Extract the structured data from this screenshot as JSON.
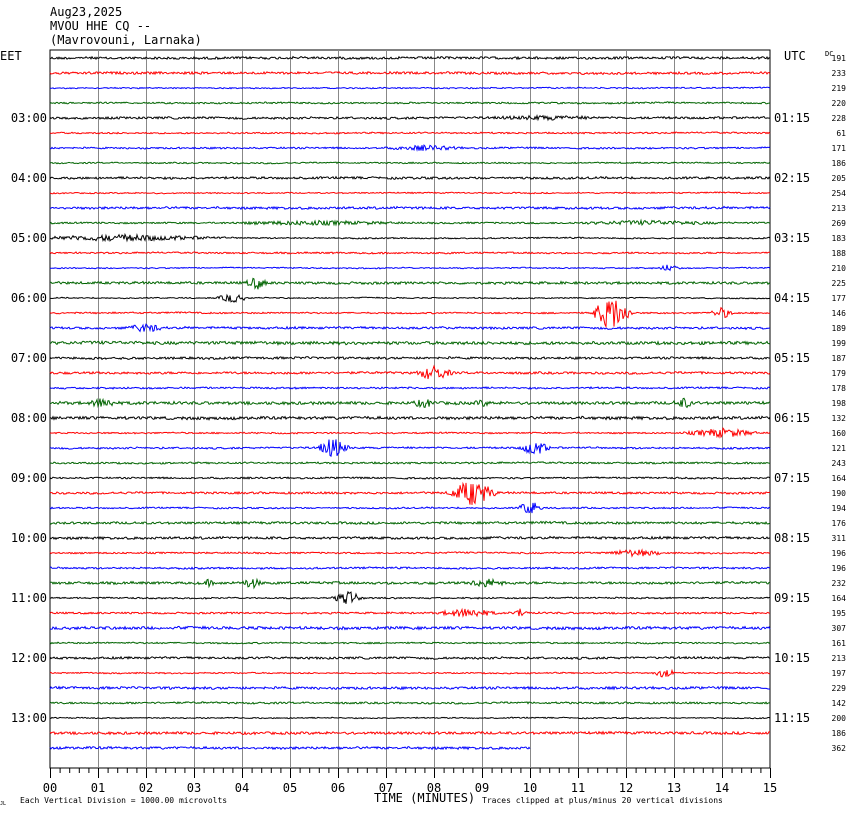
{
  "header": {
    "date": "Aug23,2025",
    "station": "MVOU HHE CQ --",
    "location": "(Mavrovouni, Larnaka)"
  },
  "labels": {
    "left_tz": "EET",
    "right_tz": "UTC",
    "dc": "DC",
    "xlabel": "TIME (MINUTES)",
    "scale_note": "Each Vertical Division = 1000.00 microvolts",
    "clip_note": "Traces clipped at plus/minus 20 vertical divisions",
    "corner_mark": "JL"
  },
  "chart_data": {
    "type": "line",
    "title": "MVOU HHE CQ --",
    "xlabel": "TIME (MINUTES)",
    "xlim": [
      0,
      15
    ],
    "x_ticks": [
      "00",
      "01",
      "02",
      "03",
      "04",
      "05",
      "06",
      "07",
      "08",
      "09",
      "10",
      "11",
      "12",
      "13",
      "14",
      "15"
    ],
    "row_minutes": 15,
    "left_hour_labels": [
      "03:00",
      "04:00",
      "05:00",
      "06:00",
      "07:00",
      "08:00",
      "09:00",
      "10:00",
      "11:00",
      "12:00",
      "13:00"
    ],
    "right_hour_labels": [
      "01:15",
      "02:15",
      "03:15",
      "04:15",
      "05:15",
      "06:15",
      "07:15",
      "08:15",
      "09:15",
      "10:15",
      "11:15"
    ],
    "trace_colors": [
      "#000000",
      "#ff0000",
      "#0000ff",
      "#006400"
    ],
    "dc_offsets": [
      191,
      233,
      219,
      220,
      228,
      61,
      171,
      186,
      205,
      254,
      213,
      269,
      183,
      188,
      210,
      225,
      177,
      146,
      189,
      199,
      187,
      179,
      178,
      198,
      132,
      160,
      121,
      243,
      164,
      190,
      194,
      176,
      311,
      196,
      196,
      232,
      164,
      195,
      307,
      161,
      213,
      197,
      229,
      142,
      200,
      186,
      362
    ],
    "last_trace_end_minute": 10.0,
    "events": [
      {
        "row": 4,
        "minute": 10.3,
        "amp": 2.5,
        "len": 2.0
      },
      {
        "row": 6,
        "minute": 7.8,
        "amp": 3,
        "len": 1.2
      },
      {
        "row": 11,
        "minute": 5.5,
        "amp": 2.5,
        "len": 3.0
      },
      {
        "row": 11,
        "minute": 12.5,
        "amp": 2.5,
        "len": 2.5
      },
      {
        "row": 12,
        "minute": 1.5,
        "amp": 3.5,
        "len": 2.8
      },
      {
        "row": 14,
        "minute": 12.9,
        "amp": 4,
        "len": 0.3
      },
      {
        "row": 15,
        "minute": 4.3,
        "amp": 7,
        "len": 0.3
      },
      {
        "row": 16,
        "minute": 3.8,
        "amp": 5,
        "len": 0.4
      },
      {
        "row": 17,
        "minute": 11.7,
        "amp": 18,
        "len": 0.5
      },
      {
        "row": 17,
        "minute": 14.0,
        "amp": 6,
        "len": 0.3
      },
      {
        "row": 18,
        "minute": 2.0,
        "amp": 5,
        "len": 0.5
      },
      {
        "row": 21,
        "minute": 8.0,
        "amp": 8,
        "len": 0.5
      },
      {
        "row": 23,
        "minute": 1.1,
        "amp": 6,
        "len": 0.4
      },
      {
        "row": 23,
        "minute": 7.8,
        "amp": 5,
        "len": 0.4
      },
      {
        "row": 23,
        "minute": 9.0,
        "amp": 4,
        "len": 0.3
      },
      {
        "row": 23,
        "minute": 13.2,
        "amp": 6,
        "len": 0.3
      },
      {
        "row": 25,
        "minute": 14.0,
        "amp": 5,
        "len": 1.0
      },
      {
        "row": 26,
        "minute": 5.9,
        "amp": 11,
        "len": 0.4
      },
      {
        "row": 26,
        "minute": 10.1,
        "amp": 8,
        "len": 0.4
      },
      {
        "row": 29,
        "minute": 8.8,
        "amp": 14,
        "len": 0.6
      },
      {
        "row": 30,
        "minute": 10.0,
        "amp": 8,
        "len": 0.3
      },
      {
        "row": 33,
        "minute": 12.2,
        "amp": 4,
        "len": 0.8
      },
      {
        "row": 35,
        "minute": 4.2,
        "amp": 6,
        "len": 0.3
      },
      {
        "row": 35,
        "minute": 3.3,
        "amp": 4,
        "len": 0.2
      },
      {
        "row": 35,
        "minute": 9.1,
        "amp": 5,
        "len": 0.6
      },
      {
        "row": 36,
        "minute": 6.2,
        "amp": 7,
        "len": 0.4
      },
      {
        "row": 37,
        "minute": 8.7,
        "amp": 5,
        "len": 0.8
      },
      {
        "row": 37,
        "minute": 9.8,
        "amp": 5,
        "len": 0.2
      },
      {
        "row": 41,
        "minute": 12.8,
        "amp": 5,
        "len": 0.3
      }
    ]
  }
}
